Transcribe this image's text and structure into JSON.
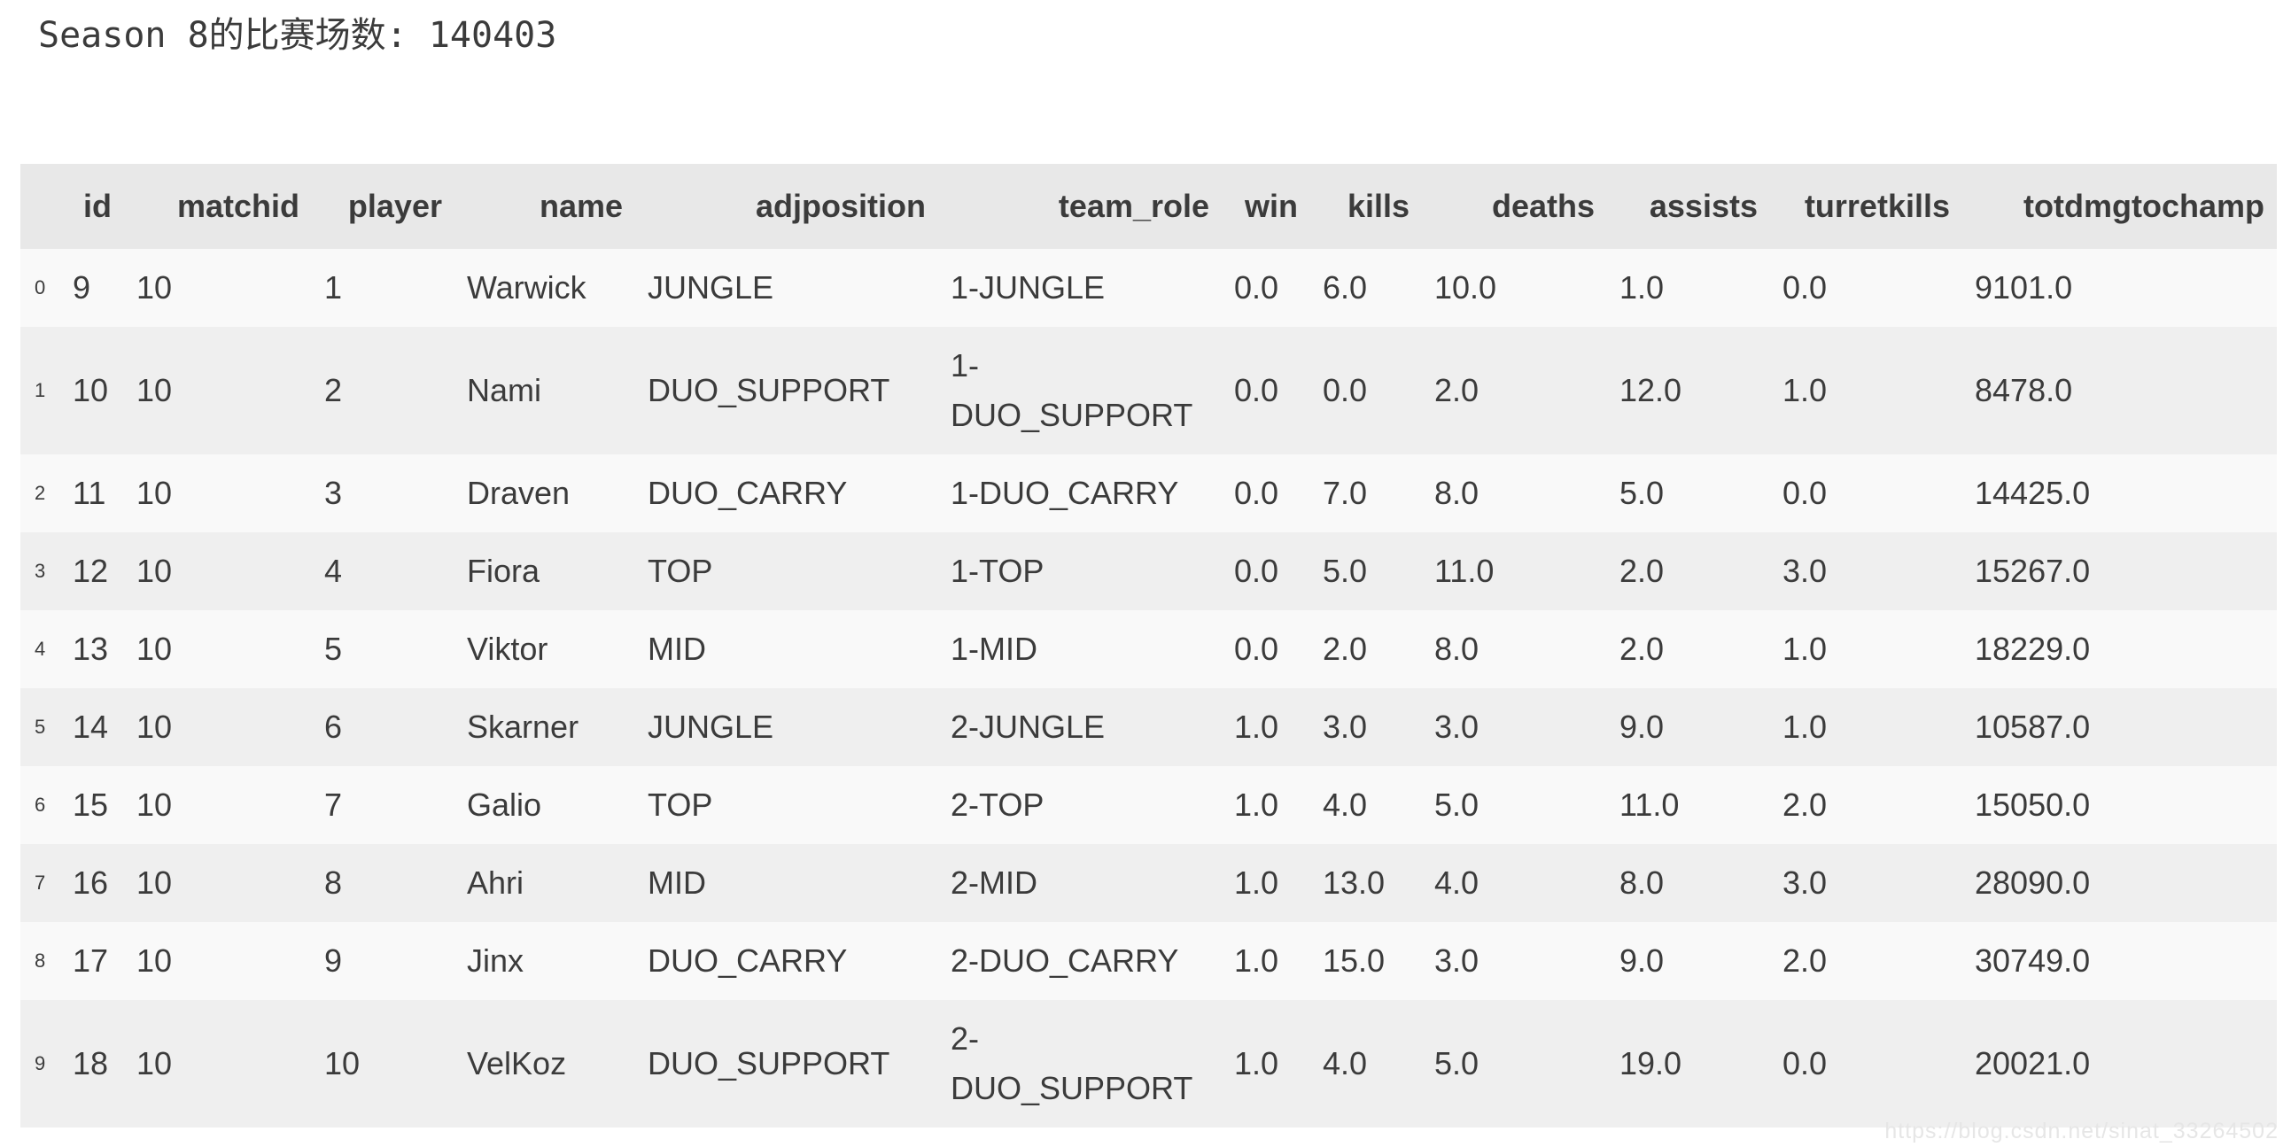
{
  "output": {
    "title_line": "Season 8的比赛场数: 140403"
  },
  "table": {
    "columns": [
      "id",
      "matchid",
      "player",
      "name",
      "adjposition",
      "team_role",
      "win",
      "kills",
      "deaths",
      "assists",
      "turretkills",
      "totdmgtochamp"
    ],
    "rows": [
      {
        "index": "0",
        "id": "9",
        "matchid": "10",
        "player": "1",
        "name": "Warwick",
        "adjposition": "JUNGLE",
        "team_role": "1-JUNGLE",
        "win": "0.0",
        "kills": "6.0",
        "deaths": "10.0",
        "assists": "1.0",
        "turretkills": "0.0",
        "totdmgtochamp": "9101.0"
      },
      {
        "index": "1",
        "id": "10",
        "matchid": "10",
        "player": "2",
        "name": "Nami",
        "adjposition": "DUO_SUPPORT",
        "team_role": "1-DUO_SUPPORT",
        "win": "0.0",
        "kills": "0.0",
        "deaths": "2.0",
        "assists": "12.0",
        "turretkills": "1.0",
        "totdmgtochamp": "8478.0"
      },
      {
        "index": "2",
        "id": "11",
        "matchid": "10",
        "player": "3",
        "name": "Draven",
        "adjposition": "DUO_CARRY",
        "team_role": "1-DUO_CARRY",
        "win": "0.0",
        "kills": "7.0",
        "deaths": "8.0",
        "assists": "5.0",
        "turretkills": "0.0",
        "totdmgtochamp": "14425.0"
      },
      {
        "index": "3",
        "id": "12",
        "matchid": "10",
        "player": "4",
        "name": "Fiora",
        "adjposition": "TOP",
        "team_role": "1-TOP",
        "win": "0.0",
        "kills": "5.0",
        "deaths": "11.0",
        "assists": "2.0",
        "turretkills": "3.0",
        "totdmgtochamp": "15267.0"
      },
      {
        "index": "4",
        "id": "13",
        "matchid": "10",
        "player": "5",
        "name": "Viktor",
        "adjposition": "MID",
        "team_role": "1-MID",
        "win": "0.0",
        "kills": "2.0",
        "deaths": "8.0",
        "assists": "2.0",
        "turretkills": "1.0",
        "totdmgtochamp": "18229.0"
      },
      {
        "index": "5",
        "id": "14",
        "matchid": "10",
        "player": "6",
        "name": "Skarner",
        "adjposition": "JUNGLE",
        "team_role": "2-JUNGLE",
        "win": "1.0",
        "kills": "3.0",
        "deaths": "3.0",
        "assists": "9.0",
        "turretkills": "1.0",
        "totdmgtochamp": "10587.0"
      },
      {
        "index": "6",
        "id": "15",
        "matchid": "10",
        "player": "7",
        "name": "Galio",
        "adjposition": "TOP",
        "team_role": "2-TOP",
        "win": "1.0",
        "kills": "4.0",
        "deaths": "5.0",
        "assists": "11.0",
        "turretkills": "2.0",
        "totdmgtochamp": "15050.0"
      },
      {
        "index": "7",
        "id": "16",
        "matchid": "10",
        "player": "8",
        "name": "Ahri",
        "adjposition": "MID",
        "team_role": "2-MID",
        "win": "1.0",
        "kills": "13.0",
        "deaths": "4.0",
        "assists": "8.0",
        "turretkills": "3.0",
        "totdmgtochamp": "28090.0"
      },
      {
        "index": "8",
        "id": "17",
        "matchid": "10",
        "player": "9",
        "name": "Jinx",
        "adjposition": "DUO_CARRY",
        "team_role": "2-DUO_CARRY",
        "win": "1.0",
        "kills": "15.0",
        "deaths": "3.0",
        "assists": "9.0",
        "turretkills": "2.0",
        "totdmgtochamp": "30749.0"
      },
      {
        "index": "9",
        "id": "18",
        "matchid": "10",
        "player": "10",
        "name": "VelKoz",
        "adjposition": "DUO_SUPPORT",
        "team_role": "2-DUO_SUPPORT",
        "win": "1.0",
        "kills": "4.0",
        "deaths": "5.0",
        "assists": "19.0",
        "turretkills": "0.0",
        "totdmgtochamp": "20021.0"
      }
    ]
  },
  "watermark": {
    "url_text": "https://blog.csdn.net/sinat_33264502"
  },
  "colors": {
    "header_bg": "#e8e8e8",
    "row_light": "#f9f9f9",
    "row_dark": "#efefef",
    "text": "#3b3b3b",
    "watermark_text": "#e6e6e6"
  }
}
